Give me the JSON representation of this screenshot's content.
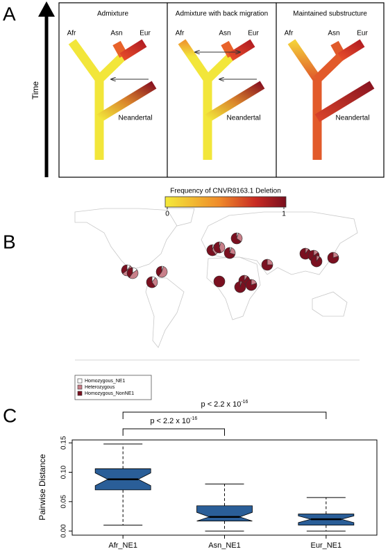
{
  "panel_labels": [
    "A",
    "B",
    "C"
  ],
  "panel_a": {
    "time_label": "Time",
    "scenarios": [
      {
        "title": "Admixture",
        "afr": "Afr",
        "asn": "Asn",
        "eur": "Eur",
        "neandertal": "Neandertal"
      },
      {
        "title": "Admixture with back migration",
        "afr": "Afr",
        "asn": "Asn",
        "eur": "Eur",
        "neandertal": "Neandertal"
      },
      {
        "title": "Maintained substructure",
        "afr": "Afr",
        "asn": "Asn",
        "eur": "Eur",
        "neandertal": "Neandertal"
      }
    ],
    "colorbar": {
      "title": "Frequency of CNVR8163.1 Deletion",
      "ticks": [
        0,
        1
      ]
    }
  },
  "map": {
    "legend": [
      {
        "name": "Homozygous_NE1",
        "color": "#ffffff"
      },
      {
        "name": "Heterozygous",
        "color": "#c9808a"
      },
      {
        "name": "Homozygous_NonNE1",
        "color": "#7a1020"
      }
    ],
    "pies": [
      {
        "values": [
          0.1,
          0.55,
          0.35
        ]
      },
      {
        "values": [
          0.15,
          0.45,
          0.4
        ]
      },
      {
        "values": [
          0.05,
          0.55,
          0.4
        ]
      },
      {
        "values": [
          0.1,
          0.3,
          0.6
        ]
      },
      {
        "values": [
          0.05,
          0.35,
          0.6
        ]
      },
      {
        "values": [
          0.05,
          0.4,
          0.55
        ]
      },
      {
        "values": [
          0.05,
          0.3,
          0.65
        ]
      },
      {
        "values": [
          0.05,
          0.25,
          0.7
        ]
      },
      {
        "values": [
          0,
          0,
          1
        ]
      },
      {
        "values": [
          0,
          0.1,
          0.9
        ]
      },
      {
        "values": [
          0,
          0.05,
          0.95
        ]
      },
      {
        "values": [
          0,
          0.2,
          0.8
        ]
      },
      {
        "values": [
          0,
          0.25,
          0.75
        ]
      },
      {
        "values": [
          0,
          0.1,
          0.9
        ]
      },
      {
        "values": [
          0,
          0.15,
          0.85
        ]
      },
      {
        "values": [
          0,
          0.1,
          0.9
        ]
      },
      {
        "values": [
          0,
          0.2,
          0.8
        ]
      }
    ]
  },
  "chart_data": {
    "type": "boxplot",
    "y_label": "Pairwise Distance",
    "categories": [
      "Afr_NE1",
      "Asn_NE1",
      "Eur_NE1"
    ],
    "color": "#2a5e98",
    "boxes": [
      {
        "whislo": 0.01,
        "q1": 0.07,
        "med": 0.088,
        "q3": 0.106,
        "whishi": 0.148
      },
      {
        "whislo": 0.0,
        "q1": 0.017,
        "med": 0.024,
        "q3": 0.043,
        "whishi": 0.08
      },
      {
        "whislo": 0.0,
        "q1": 0.01,
        "med": 0.02,
        "q3": 0.029,
        "whishi": 0.057
      }
    ],
    "ylim": [
      -0.007,
      0.155
    ],
    "yticks": [
      {
        "value": 0,
        "label": "0.00"
      },
      0.05,
      {
        "value": 0.1,
        "label": "0.10"
      },
      0.15
    ],
    "annotations": [
      {
        "text": "p < 2.2 x 10",
        "exponent": "-16"
      },
      {
        "text": "p < 2.2 x 10",
        "exponent": "-16"
      }
    ]
  }
}
